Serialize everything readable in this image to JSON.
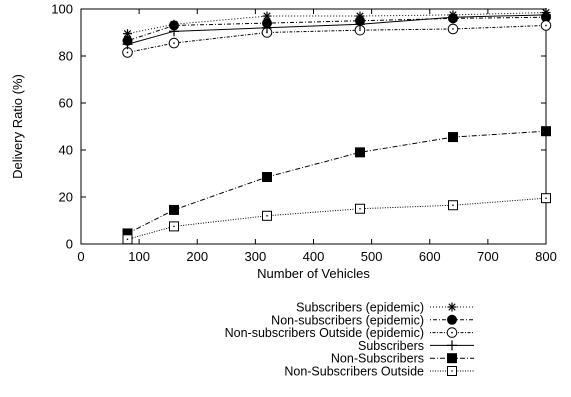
{
  "chart_data": {
    "type": "line",
    "title": "",
    "xlabel": "Number of Vehicles",
    "ylabel": "Delivery Ratio (%)",
    "xlim": [
      0,
      800
    ],
    "ylim": [
      0,
      100
    ],
    "xticks": [
      "0",
      "100",
      "200",
      "300",
      "400",
      "500",
      "600",
      "700",
      "800"
    ],
    "yticks": [
      "0",
      "20",
      "40",
      "60",
      "80",
      "100"
    ],
    "grid": false,
    "legend_position": "bottom-right, below plot",
    "x": [
      80,
      160,
      320,
      480,
      640,
      800
    ],
    "series": [
      {
        "name": "Subscribers (epidemic)",
        "marker": "star",
        "dash": "dotted",
        "values": [
          89.5,
          93.5,
          97,
          97,
          97.5,
          98.5
        ]
      },
      {
        "name": "Non-subscribers (epidemic)",
        "marker": "filled-circle",
        "dash": "dot-dash",
        "values": [
          86.5,
          93,
          94,
          95,
          96,
          96.5
        ]
      },
      {
        "name": "Non-subscribers Outside (epidemic)",
        "marker": "open-circle",
        "dash": "dot-dash-fine",
        "values": [
          81.5,
          85.5,
          90,
          91,
          91.5,
          93
        ]
      },
      {
        "name": "Subscribers",
        "marker": "plus",
        "dash": "solid",
        "values": [
          85,
          90.5,
          92,
          93.5,
          96.5,
          97.5
        ]
      },
      {
        "name": "Non-Subscribers",
        "marker": "filled-square",
        "dash": "dash-dot",
        "values": [
          4.5,
          14.5,
          28.5,
          39,
          45.5,
          48
        ]
      },
      {
        "name": "Non-Subscribers Outside",
        "marker": "open-square",
        "dash": "fine-dotted",
        "values": [
          2,
          7.5,
          12,
          15,
          16.5,
          19.5
        ]
      }
    ]
  }
}
